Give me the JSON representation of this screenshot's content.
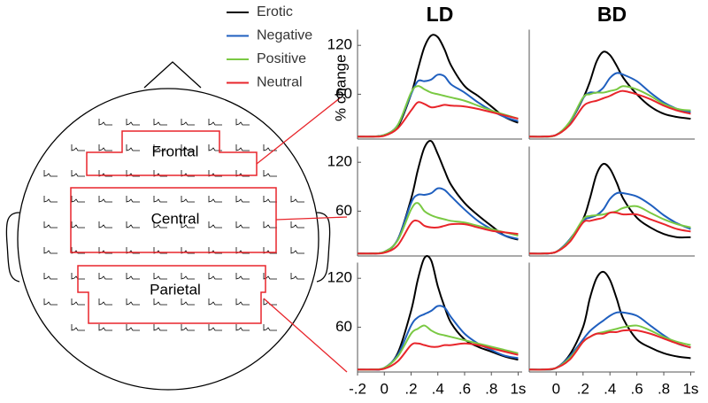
{
  "diagram": {
    "regions": [
      "Frontal",
      "Central",
      "Parietal"
    ]
  },
  "chart_data": [
    {
      "type": "line",
      "title": "LD",
      "ylabel": "% change",
      "x": [
        -0.2,
        -0.1,
        0,
        0.1,
        0.2,
        0.25,
        0.3,
        0.35,
        0.4,
        0.45,
        0.5,
        0.6,
        0.7,
        0.8,
        0.9,
        1.0
      ],
      "xlim": [
        -0.2,
        1.03
      ],
      "ylim": [
        5,
        148
      ],
      "yticks": [
        60,
        120
      ],
      "series": [
        {
          "name": "Erotic",
          "color": "#000000",
          "values": [
            8,
            8,
            10,
            20,
            60,
            90,
            118,
            132,
            130,
            115,
            95,
            70,
            58,
            45,
            32,
            25
          ]
        },
        {
          "name": "Negative",
          "color": "#1f5fbf",
          "values": [
            8,
            8,
            10,
            22,
            60,
            76,
            76,
            78,
            84,
            82,
            72,
            62,
            50,
            40,
            32,
            27
          ]
        },
        {
          "name": "Positive",
          "color": "#7ac943",
          "values": [
            8,
            8,
            10,
            22,
            62,
            70,
            66,
            62,
            60,
            58,
            56,
            52,
            46,
            40,
            35,
            30
          ]
        },
        {
          "name": "Neutral",
          "color": "#e8252b",
          "values": [
            8,
            8,
            9,
            18,
            40,
            50,
            48,
            44,
            45,
            47,
            46,
            45,
            42,
            38,
            34,
            30
          ]
        }
      ]
    },
    {
      "type": "line",
      "title": "BD",
      "x": [
        -0.2,
        -0.1,
        0,
        0.1,
        0.2,
        0.25,
        0.3,
        0.35,
        0.4,
        0.45,
        0.5,
        0.6,
        0.7,
        0.8,
        0.9,
        1.0
      ],
      "xlim": [
        -0.2,
        1.03
      ],
      "ylim": [
        5,
        148
      ],
      "series": [
        {
          "color": "#000000",
          "values": [
            8,
            8,
            10,
            25,
            55,
            75,
            100,
            112,
            108,
            95,
            80,
            60,
            45,
            36,
            32,
            30
          ]
        },
        {
          "color": "#1f5fbf",
          "values": [
            8,
            8,
            10,
            25,
            55,
            62,
            62,
            68,
            80,
            86,
            84,
            76,
            62,
            50,
            42,
            38
          ]
        },
        {
          "color": "#7ac943",
          "values": [
            8,
            8,
            10,
            26,
            56,
            60,
            62,
            62,
            64,
            66,
            70,
            66,
            58,
            48,
            42,
            40
          ]
        },
        {
          "color": "#e8252b",
          "values": [
            8,
            8,
            10,
            22,
            45,
            50,
            52,
            55,
            58,
            62,
            64,
            60,
            54,
            46,
            40,
            36
          ]
        }
      ]
    },
    {
      "type": "line",
      "x": [
        -0.2,
        -0.1,
        0,
        0.1,
        0.2,
        0.25,
        0.3,
        0.35,
        0.4,
        0.45,
        0.5,
        0.6,
        0.7,
        0.8,
        0.9,
        1.0
      ],
      "xlim": [
        -0.2,
        1.03
      ],
      "ylim": [
        5,
        148
      ],
      "yticks": [
        60,
        120
      ],
      "series": [
        {
          "color": "#000000",
          "values": [
            8,
            8,
            10,
            25,
            75,
            110,
            138,
            146,
            130,
            110,
            92,
            70,
            55,
            42,
            30,
            25
          ]
        },
        {
          "color": "#1f5fbf",
          "values": [
            8,
            8,
            10,
            25,
            70,
            80,
            80,
            82,
            88,
            86,
            78,
            62,
            48,
            38,
            30,
            26
          ]
        },
        {
          "color": "#7ac943",
          "values": [
            8,
            8,
            10,
            24,
            62,
            70,
            60,
            55,
            52,
            50,
            48,
            46,
            42,
            38,
            34,
            30
          ]
        },
        {
          "color": "#e8252b",
          "values": [
            8,
            8,
            9,
            18,
            45,
            48,
            42,
            40,
            40,
            42,
            44,
            44,
            40,
            36,
            34,
            32
          ]
        }
      ]
    },
    {
      "type": "line",
      "x": [
        -0.2,
        -0.1,
        0,
        0.1,
        0.2,
        0.25,
        0.3,
        0.35,
        0.4,
        0.45,
        0.5,
        0.6,
        0.7,
        0.8,
        0.9,
        1.0
      ],
      "xlim": [
        -0.2,
        1.03
      ],
      "ylim": [
        5,
        148
      ],
      "series": [
        {
          "color": "#000000",
          "values": [
            8,
            8,
            10,
            25,
            50,
            75,
            105,
            118,
            112,
            95,
            75,
            52,
            40,
            32,
            28,
            28
          ]
        },
        {
          "color": "#1f5fbf",
          "values": [
            8,
            8,
            10,
            25,
            48,
            52,
            55,
            62,
            75,
            82,
            82,
            78,
            68,
            55,
            45,
            38
          ]
        },
        {
          "color": "#7ac943",
          "values": [
            8,
            8,
            10,
            24,
            50,
            54,
            55,
            56,
            58,
            60,
            64,
            66,
            58,
            50,
            44,
            40
          ]
        },
        {
          "color": "#e8252b",
          "values": [
            8,
            8,
            10,
            22,
            46,
            48,
            50,
            52,
            58,
            58,
            56,
            56,
            50,
            44,
            38,
            35
          ]
        }
      ]
    },
    {
      "type": "line",
      "x": [
        -0.2,
        -0.1,
        0,
        0.1,
        0.2,
        0.25,
        0.3,
        0.35,
        0.4,
        0.45,
        0.5,
        0.6,
        0.7,
        0.8,
        0.9,
        1.0
      ],
      "xlim": [
        -0.2,
        1.03
      ],
      "ylim": [
        5,
        148
      ],
      "yticks": [
        60,
        120
      ],
      "xticks": [
        {
          "value": -0.2,
          "label": "-.2"
        },
        0,
        {
          "value": 0.2,
          "label": ".2"
        },
        {
          "value": 0.4,
          "label": ".4"
        },
        {
          "value": 0.6,
          "label": ".6"
        },
        {
          "value": 0.8,
          "label": ".8"
        },
        {
          "value": 1,
          "label": "1s"
        }
      ],
      "series": [
        {
          "color": "#000000",
          "values": [
            8,
            8,
            10,
            28,
            80,
            118,
            145,
            142,
            110,
            85,
            65,
            45,
            36,
            30,
            24,
            20
          ]
        },
        {
          "color": "#1f5fbf",
          "values": [
            8,
            8,
            10,
            26,
            62,
            72,
            76,
            80,
            86,
            84,
            72,
            52,
            40,
            32,
            25,
            22
          ]
        },
        {
          "color": "#7ac943",
          "values": [
            8,
            8,
            10,
            24,
            52,
            58,
            62,
            56,
            52,
            50,
            48,
            44,
            40,
            36,
            32,
            28
          ]
        },
        {
          "color": "#e8252b",
          "values": [
            8,
            8,
            9,
            18,
            38,
            40,
            38,
            36,
            36,
            38,
            38,
            40,
            38,
            34,
            30,
            26
          ]
        }
      ]
    },
    {
      "type": "line",
      "x": [
        -0.2,
        -0.1,
        0,
        0.1,
        0.2,
        0.25,
        0.3,
        0.35,
        0.4,
        0.45,
        0.5,
        0.6,
        0.7,
        0.8,
        0.9,
        1.0
      ],
      "xlim": [
        -0.2,
        1.03
      ],
      "ylim": [
        5,
        148
      ],
      "xticks": [
        {
          "value": 0,
          "label": "0"
        },
        {
          "value": 0.2,
          "label": ".2"
        },
        {
          "value": 0.4,
          "label": ".4"
        },
        {
          "value": 0.6,
          "label": ".6"
        },
        {
          "value": 0.8,
          "label": ".8"
        },
        {
          "value": 1,
          "label": "1s"
        }
      ],
      "series": [
        {
          "color": "#000000",
          "values": [
            8,
            8,
            10,
            26,
            60,
            95,
            120,
            128,
            118,
            95,
            70,
            45,
            35,
            28,
            24,
            22
          ]
        },
        {
          "color": "#1f5fbf",
          "values": [
            8,
            8,
            10,
            24,
            45,
            55,
            62,
            68,
            74,
            78,
            78,
            74,
            62,
            50,
            40,
            35
          ]
        },
        {
          "color": "#7ac943",
          "values": [
            8,
            8,
            10,
            22,
            42,
            48,
            52,
            54,
            56,
            58,
            60,
            62,
            56,
            48,
            42,
            38
          ]
        },
        {
          "color": "#e8252b",
          "values": [
            8,
            8,
            10,
            20,
            42,
            48,
            52,
            52,
            54,
            54,
            56,
            56,
            52,
            46,
            40,
            35
          ]
        }
      ]
    }
  ]
}
